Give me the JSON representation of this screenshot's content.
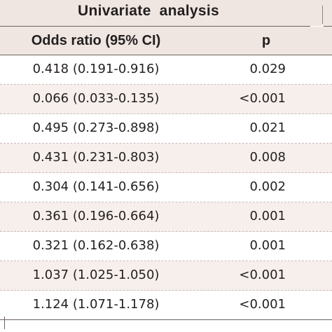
{
  "table": {
    "group_header": "Univariate  analysis",
    "columns": {
      "odds_ratio": "Odds ratio (95% CI)",
      "p": "p"
    },
    "rows": [
      {
        "or": "0.418 (0.191-0.916)",
        "p": "0.029"
      },
      {
        "or": "0.066 (0.033-0.135)",
        "p": "<0.001"
      },
      {
        "or": "0.495 (0.273-0.898)",
        "p": "0.021"
      },
      {
        "or": "0.431 (0.231-0.803)",
        "p": "0.008"
      },
      {
        "or": "0.304 (0.141-0.656)",
        "p": "0.002"
      },
      {
        "or": "0.361 (0.196-0.664)",
        "p": "0.001"
      },
      {
        "or": "0.321 (0.162-0.638)",
        "p": "0.001"
      },
      {
        "or": "1.037 (1.025-1.050)",
        "p": "<0.001"
      },
      {
        "or": "1.124 (1.071-1.178)",
        "p": "<0.001"
      }
    ]
  },
  "colors": {
    "header_bg": "#efe6e1",
    "shaded_row_bg": "#f6efeb",
    "text": "#231f20"
  }
}
